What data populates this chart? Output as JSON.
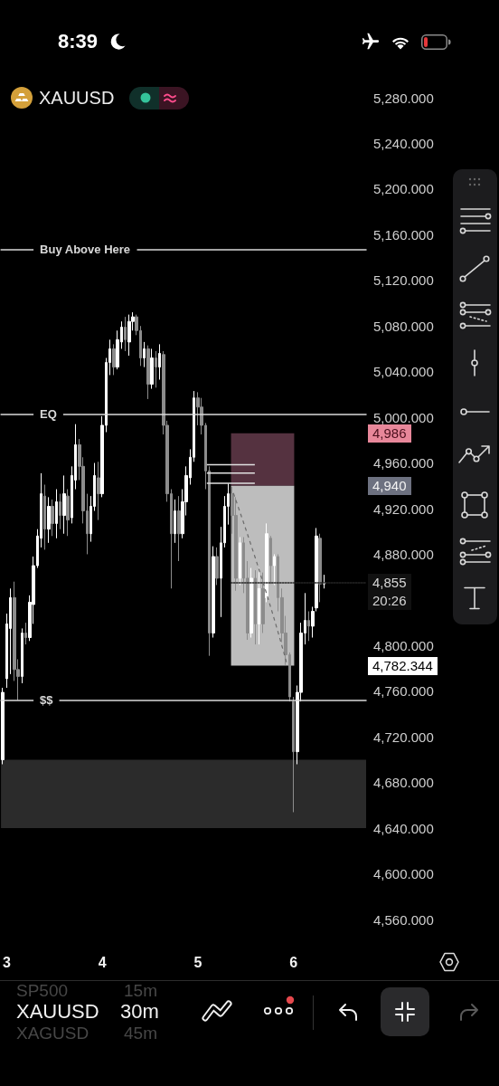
{
  "chart_data": {
    "type": "candlestick",
    "title": "XAUUSD",
    "x": [
      2.96,
      3,
      3.04,
      3.08,
      3.12,
      3.16,
      3.2,
      3.24,
      3.28,
      3.32,
      3.36,
      3.4,
      3.44,
      3.48,
      3.52,
      3.56,
      3.6,
      3.64,
      3.68,
      3.72,
      3.76,
      3.8,
      3.84,
      3.88,
      3.92,
      3.96,
      4,
      4.04,
      4.08,
      4.12,
      4.16,
      4.2,
      4.24,
      4.28,
      4.32,
      4.36,
      4.4,
      4.44,
      4.48,
      4.52,
      4.56,
      4.6,
      4.64,
      4.68,
      4.72,
      4.76,
      4.8,
      4.84,
      4.88,
      4.92,
      4.96,
      5,
      5.04,
      5.08,
      5.12,
      5.16,
      5.2,
      5.24,
      5.28,
      5.32,
      5.36,
      5.4,
      5.44,
      5.48,
      5.52,
      5.56,
      5.6,
      5.64,
      5.68,
      5.72,
      5.76,
      5.8,
      5.84,
      5.88,
      5.92,
      5.96,
      6,
      6.04,
      6.08,
      6.12,
      6.16,
      6.2,
      6.24,
      6.28,
      6.32
    ],
    "ohlc": [
      [
        4700,
        4763,
        4696,
        4759
      ],
      [
        4771,
        4828,
        4763,
        4819
      ],
      [
        4815,
        4850,
        4775,
        4842
      ],
      [
        4842,
        4856,
        4769,
        4779
      ],
      [
        4779,
        4788,
        4752,
        4773
      ],
      [
        4773,
        4815,
        4767,
        4811
      ],
      [
        4811,
        4820,
        4801,
        4807
      ],
      [
        4807,
        4844,
        4804,
        4838
      ],
      [
        4836,
        4878,
        4819,
        4870
      ],
      [
        4870,
        4902,
        4868,
        4896
      ],
      [
        4894,
        4951,
        4886,
        4933
      ],
      [
        4931,
        4941,
        4884,
        4902
      ],
      [
        4902,
        4930,
        4890,
        4922
      ],
      [
        4922,
        4928,
        4896,
        4907
      ],
      [
        4907,
        4937,
        4894,
        4926
      ],
      [
        4926,
        4933,
        4902,
        4914
      ],
      [
        4914,
        4949,
        4898,
        4933
      ],
      [
        4931,
        4937,
        4896,
        4910
      ],
      [
        4912,
        4957,
        4907,
        4949
      ],
      [
        4945,
        4994,
        4937,
        4976
      ],
      [
        4976,
        4981,
        4945,
        4957
      ],
      [
        4957,
        4965,
        4907,
        4918
      ],
      [
        4918,
        4933,
        4880,
        4898
      ],
      [
        4898,
        4931,
        4891,
        4922
      ],
      [
        4922,
        4960,
        4918,
        4949
      ],
      [
        4947,
        4961,
        4910,
        4933
      ],
      [
        4933,
        5001,
        4930,
        4993
      ],
      [
        4993,
        5052,
        4987,
        5048
      ],
      [
        5048,
        5068,
        5037,
        5060
      ],
      [
        5060,
        5064,
        5037,
        5044
      ],
      [
        5044,
        5076,
        5042,
        5068
      ],
      [
        5066,
        5084,
        5060,
        5079
      ],
      [
        5079,
        5088,
        5058,
        5068
      ],
      [
        5066,
        5090,
        5054,
        5084
      ],
      [
        5084,
        5092,
        5076,
        5088
      ],
      [
        5088,
        5090,
        5072,
        5076
      ],
      [
        5076,
        5080,
        5045,
        5052
      ],
      [
        5052,
        5066,
        5044,
        5060
      ],
      [
        5060,
        5063,
        5016,
        5029
      ],
      [
        5029,
        5060,
        5025,
        5052
      ],
      [
        5052,
        5058,
        5026,
        5044
      ],
      [
        5044,
        5064,
        5033,
        5056
      ],
      [
        5055,
        5058,
        4985,
        4993
      ],
      [
        4993,
        4997,
        4926,
        4933
      ],
      [
        4933,
        4937,
        4850,
        4898
      ],
      [
        4898,
        4928,
        4890,
        4918
      ],
      [
        4918,
        4931,
        4874,
        4898
      ],
      [
        4898,
        4937,
        4894,
        4926
      ],
      [
        4926,
        4957,
        4914,
        4949
      ],
      [
        4947,
        4972,
        4941,
        4965
      ],
      [
        4965,
        5023,
        4961,
        5017
      ],
      [
        5017,
        5022,
        4993,
        5009
      ],
      [
        5009,
        5017,
        4985,
        4993
      ],
      [
        4993,
        4995,
        4937,
        4953
      ],
      [
        4953,
        4957,
        4791,
        4811
      ],
      [
        4811,
        4887,
        4807,
        4878
      ],
      [
        4878,
        4886,
        4853,
        4859
      ],
      [
        4859,
        4904,
        4825,
        4890
      ],
      [
        4890,
        4931,
        4886,
        4922
      ],
      [
        4922,
        4942,
        4906,
        4933
      ],
      [
        4933,
        4939,
        4898,
        4914
      ],
      [
        4914,
        4930,
        4848,
        4859
      ],
      [
        4859,
        4895,
        4853,
        4890
      ],
      [
        4890,
        4895,
        4846,
        4859
      ],
      [
        4859,
        4874,
        4805,
        4811
      ],
      [
        4811,
        4868,
        4807,
        4859
      ],
      [
        4859,
        4866,
        4801,
        4819
      ],
      [
        4819,
        4868,
        4801,
        4850
      ],
      [
        4850,
        4864,
        4811,
        4819
      ],
      [
        4842,
        4907,
        4838,
        4898
      ],
      [
        4894,
        4896,
        4854,
        4870
      ],
      [
        4870,
        4880,
        4853,
        4878
      ],
      [
        4878,
        4880,
        4830,
        4842
      ],
      [
        4842,
        4850,
        4803,
        4811
      ],
      [
        4811,
        4826,
        4783,
        4792
      ],
      [
        4792,
        4794,
        4751,
        4755
      ],
      [
        4751,
        4755,
        4654,
        4707
      ],
      [
        4707,
        4765,
        4696,
        4759
      ],
      [
        4759,
        4820,
        4751,
        4811
      ],
      [
        4811,
        4846,
        4801,
        4822
      ],
      [
        4822,
        4830,
        4804,
        4817
      ],
      [
        4817,
        4834,
        4807,
        4830
      ],
      [
        4833,
        4903,
        4830,
        4896
      ],
      [
        4894,
        4898,
        4838,
        4854
      ],
      [
        4854,
        4862,
        4850,
        4855
      ]
    ],
    "colors": [
      "#ffffff",
      "#ffffff",
      "#ffffff",
      "#8c8c8c",
      "#8c8c8c",
      "#ffffff",
      "#8c8c8c",
      "#ffffff",
      "#ffffff",
      "#ffffff",
      "#ffffff",
      "#8c8c8c",
      "#ffffff",
      "#8c8c8c",
      "#ffffff",
      "#8c8c8c",
      "#ffffff",
      "#8c8c8c",
      "#ffffff",
      "#ffffff",
      "#8c8c8c",
      "#8c8c8c",
      "#8c8c8c",
      "#ffffff",
      "#ffffff",
      "#8c8c8c",
      "#ffffff",
      "#ffffff",
      "#ffffff",
      "#8c8c8c",
      "#ffffff",
      "#ffffff",
      "#8c8c8c",
      "#ffffff",
      "#ffffff",
      "#8c8c8c",
      "#8c8c8c",
      "#ffffff",
      "#8c8c8c",
      "#ffffff",
      "#8c8c8c",
      "#ffffff",
      "#8c8c8c",
      "#8c8c8c",
      "#8c8c8c",
      "#ffffff",
      "#8c8c8c",
      "#ffffff",
      "#ffffff",
      "#ffffff",
      "#ffffff",
      "#8c8c8c",
      "#8c8c8c",
      "#8c8c8c",
      "#8c8c8c",
      "#ffffff",
      "#8c8c8c",
      "#ffffff",
      "#ffffff",
      "#ffffff",
      "#8c8c8c",
      "#8c8c8c",
      "#ffffff",
      "#8c8c8c",
      "#8c8c8c",
      "#ffffff",
      "#8c8c8c",
      "#ffffff",
      "#8c8c8c",
      "#ffffff",
      "#8c8c8c",
      "#ffffff",
      "#8c8c8c",
      "#8c8c8c",
      "#8c8c8c",
      "#8c8c8c",
      "#8c8c8c",
      "#ffffff",
      "#ffffff",
      "#ffffff",
      "#8c8c8c",
      "#ffffff",
      "#ffffff",
      "#8c8c8c",
      "#ffffff"
    ],
    "xlim": [
      2.94,
      6.76
    ],
    "xticks": [
      3,
      4,
      5,
      6
    ],
    "ylim": [
      4560,
      5280
    ],
    "yticks": [
      {
        "value": 5280,
        "label": "5,280.000"
      },
      {
        "value": 5240,
        "label": "5,240.000"
      },
      {
        "value": 5200,
        "label": "5,200.000"
      },
      {
        "value": 5160,
        "label": "5,160.000"
      },
      {
        "value": 5120,
        "label": "5,120.000"
      },
      {
        "value": 5080,
        "label": "5,080.000"
      },
      {
        "value": 5040,
        "label": "5,040.000"
      },
      {
        "value": 5000,
        "label": "5,000.000"
      },
      {
        "value": 4960,
        "label": "4,960.000"
      },
      {
        "value": 4920,
        "label": "4,920.000"
      },
      {
        "value": 4880,
        "label": "4,880.000"
      },
      {
        "value": 4800,
        "label": "4,800.000"
      },
      {
        "value": 4760,
        "label": "4,760.000"
      },
      {
        "value": 4720,
        "label": "4,720.000"
      },
      {
        "value": 4680,
        "label": "4,680.000"
      },
      {
        "value": 4640,
        "label": "4,640.000"
      },
      {
        "value": 4600,
        "label": "4,600.000"
      },
      {
        "value": 4560,
        "label": "4,560.000"
      }
    ],
    "ref_lines": [
      {
        "axis": "y",
        "value": 5147,
        "label": "Buy Above Here",
        "color": "#d9d9d9"
      },
      {
        "axis": "y",
        "value": 5003,
        "label": "EQ",
        "color": "#d9d9d9"
      },
      {
        "axis": "y",
        "value": 4752,
        "label": "$$",
        "color": "#d9d9d9"
      },
      {
        "axis": "y",
        "value": 4855,
        "label": "4,855",
        "color": "#262626",
        "line_style": "dotted"
      }
    ],
    "bands": [
      {
        "axis": "y",
        "from": 4640,
        "to": 4700,
        "color": "#2b2b2b"
      },
      {
        "axis": "y",
        "from": 4940,
        "to": 4986,
        "color": "#553240"
      },
      {
        "axis": "y",
        "from": 4782.344,
        "to": 4940,
        "color": "#bdbdbd"
      }
    ],
    "annotations": [
      "4,986",
      "4,940",
      "4,782.344",
      "20:26",
      "8:39",
      "XAUUSD",
      "30m",
      "SP500",
      "15m",
      "XAGUSD",
      "45m"
    ]
  }
}
